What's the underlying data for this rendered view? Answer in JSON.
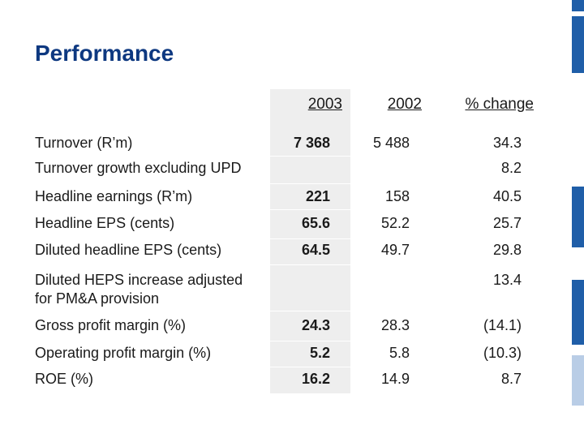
{
  "title": "Performance",
  "headers": {
    "col1": "2003",
    "col2": "2002",
    "col3": "% change"
  },
  "rows": [
    {
      "label": "Turnover (R’m)",
      "v2003": "7 368",
      "v2002": "5 488",
      "change": "34.3"
    },
    {
      "label": "Turnover growth excluding UPD",
      "v2003": "",
      "v2002": "",
      "change": "8.2"
    },
    {
      "label": "Headline earnings (R’m)",
      "v2003": "221",
      "v2002": "158",
      "change": "40.5"
    },
    {
      "label": "Headline EPS (cents)",
      "v2003": "65.6",
      "v2002": "52.2",
      "change": "25.7"
    },
    {
      "label": "Diluted headline EPS (cents)",
      "v2003": "64.5",
      "v2002": "49.7",
      "change": "29.8"
    },
    {
      "label": "Diluted HEPS increase adjusted",
      "label2": "for PM&A provision",
      "v2003": "",
      "v2002": "",
      "change": "13.4"
    },
    {
      "label": "Gross profit margin (%)",
      "v2003": "24.3",
      "v2002": "28.3",
      "change": "(14.1)"
    },
    {
      "label": "Operating profit margin (%)",
      "v2003": "5.2",
      "v2002": "5.8",
      "change": "(10.3)"
    },
    {
      "label": "ROE (%)",
      "v2003": "16.2",
      "v2002": "14.9",
      "change": "8.7"
    }
  ],
  "colors": {
    "title": "#0d3880",
    "accent": "#1f5ea8",
    "accent_light": "#b9cde6",
    "column_bg": "#eeeeee"
  }
}
